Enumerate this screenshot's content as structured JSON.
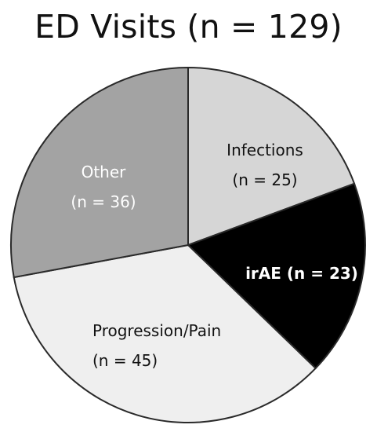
{
  "chart_data": {
    "type": "pie",
    "title": "ED Visits (n = 129)",
    "slices": [
      {
        "label": "Infections",
        "count_label": "(n = 25)",
        "value": 25,
        "color": "#d6d6d6",
        "text_color": "#111111"
      },
      {
        "label": "irAE (n = 23)",
        "count_label": "",
        "value": 23,
        "color": "#000000",
        "text_color": "#ffffff",
        "bold": true
      },
      {
        "label": "Progression/Pain",
        "count_label": "(n = 45)",
        "value": 45,
        "color": "#efefef",
        "text_color": "#111111"
      },
      {
        "label": "Other",
        "count_label": "(n = 36)",
        "value": 36,
        "color": "#a3a3a3",
        "text_color": "#ffffff"
      }
    ],
    "start_position": "top",
    "direction": "clockwise"
  }
}
